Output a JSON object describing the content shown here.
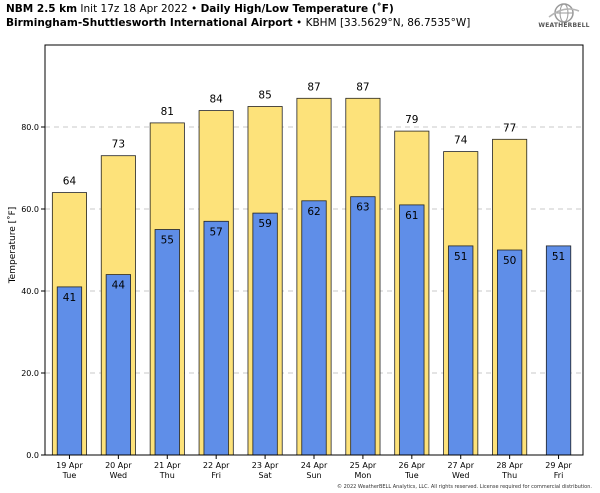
{
  "header": {
    "model": "NBM 2.5 km",
    "init": "Init 17z 18 Apr 2022",
    "title": "Daily High/Low Temperature (˚F)",
    "station": "Birmingham-Shuttlesworth International Airport",
    "station_code": "KBHM [33.5629°N, 86.7535°W]",
    "bullet": "•"
  },
  "logo": {
    "text": "WEATHERBELL",
    "icon": "globe-icon"
  },
  "copyright": "© 2022 WeatherBELL Analytics, LLC. All rights reserved. License required for commercial distribution.",
  "colors": {
    "high": "#fde27a",
    "low": "#5f8ee8",
    "outline": "#222222",
    "grid": "#c8c8c8"
  },
  "chart_data": {
    "type": "bar",
    "ylabel": "Temperature [˚F]",
    "ylim": [
      0,
      100
    ],
    "yticks": [
      0.0,
      20.0,
      40.0,
      60.0,
      80.0
    ],
    "ytick_labels": [
      "0.0",
      "20.0",
      "40.0",
      "60.0",
      "80.0"
    ],
    "grid": "horizontal dashed",
    "categories": [
      {
        "date": "19 Apr",
        "day": "Tue"
      },
      {
        "date": "20 Apr",
        "day": "Wed"
      },
      {
        "date": "21 Apr",
        "day": "Thu"
      },
      {
        "date": "22 Apr",
        "day": "Fri"
      },
      {
        "date": "23 Apr",
        "day": "Sat"
      },
      {
        "date": "24 Apr",
        "day": "Sun"
      },
      {
        "date": "25 Apr",
        "day": "Mon"
      },
      {
        "date": "26 Apr",
        "day": "Tue"
      },
      {
        "date": "27 Apr",
        "day": "Wed"
      },
      {
        "date": "28 Apr",
        "day": "Thu"
      },
      {
        "date": "29 Apr",
        "day": "Fri"
      }
    ],
    "high_values": [
      64,
      73,
      81,
      84,
      85,
      87,
      87,
      79,
      74,
      77,
      null
    ],
    "high_labels": [
      "64",
      "73",
      "81",
      "84",
      "85",
      "87",
      "87",
      "79",
      "74",
      "77",
      ""
    ],
    "low_values": [
      41,
      44,
      55,
      57,
      59,
      62,
      63,
      61,
      51,
      50,
      51
    ],
    "low_labels": [
      "41",
      "44",
      "55",
      "57",
      "59",
      "62",
      "63",
      "61",
      "51",
      "50",
      "51"
    ]
  }
}
